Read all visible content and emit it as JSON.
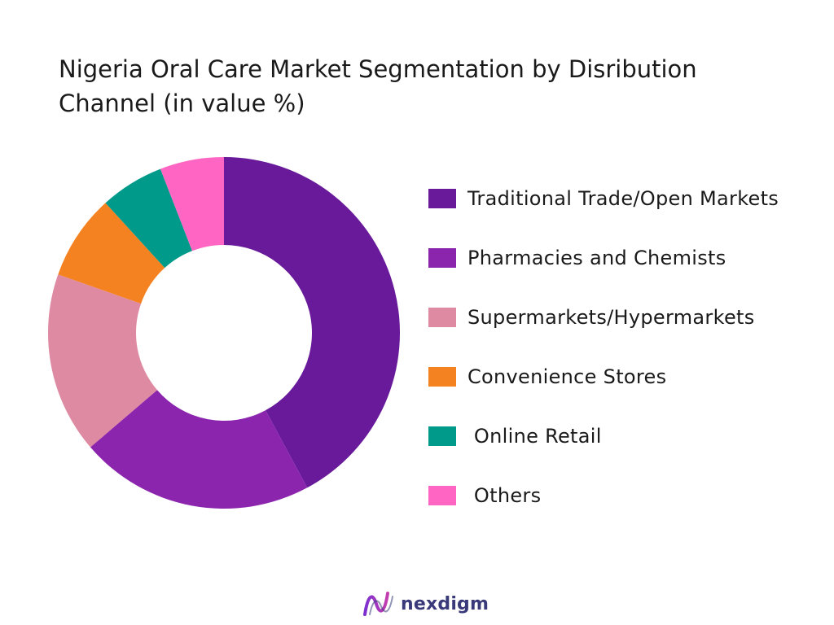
{
  "chart_data": {
    "type": "pie",
    "title": "Nigeria Oral Care Market Segmentation by Disribution Channel (in value %)",
    "donut": true,
    "legend_position": "right",
    "categories": [
      "Traditional Trade/Open Markets",
      "Pharmacies and Chemists",
      "Supermarkets/Hypermarkets",
      "Convenience Stores",
      " Online Retail",
      " Others"
    ],
    "values": [
      43,
      22,
      17,
      8,
      6,
      6
    ],
    "colors": [
      "#681a9a",
      "#8b25ad",
      "#de8aa2",
      "#f58220",
      "#009a8a",
      "#ff66c4"
    ]
  },
  "brand": {
    "name": "nexdigm",
    "logo_icon": "nexdigm-wave-icon"
  }
}
